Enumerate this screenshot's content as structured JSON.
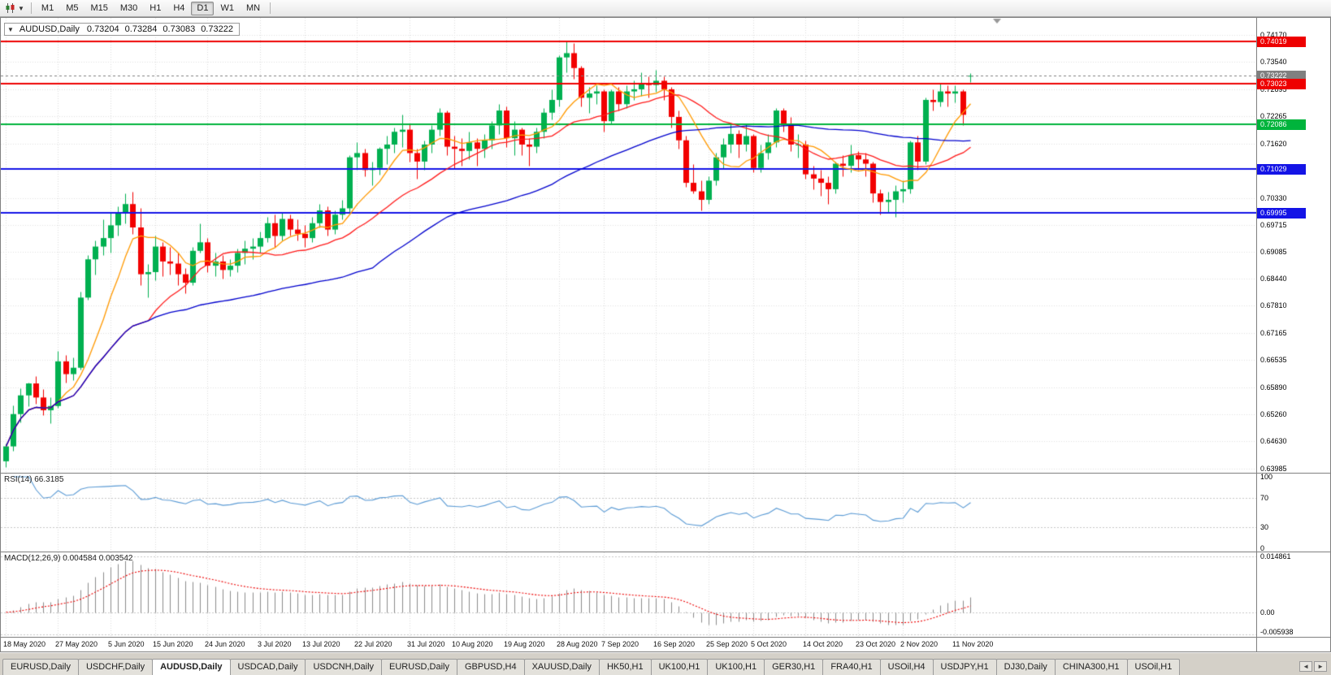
{
  "toolbar": {
    "dropdown_caret": "▼",
    "timeframes": [
      "M1",
      "M5",
      "M15",
      "M30",
      "H1",
      "H4",
      "D1",
      "W1",
      "MN"
    ],
    "active_timeframe": "D1"
  },
  "info_box": {
    "caret": "▼",
    "symbol": "AUDUSD,Daily",
    "open": "0.73204",
    "high": "0.73284",
    "low": "0.73083",
    "close": "0.73222"
  },
  "price_scale": {
    "ticks": [
      "0.74170",
      "0.73540",
      "0.72895",
      "0.72265",
      "0.71620",
      "0.70330",
      "0.69715",
      "0.69085",
      "0.68440",
      "0.67810",
      "0.67165",
      "0.66535",
      "0.65890",
      "0.65260",
      "0.64630",
      "0.63985"
    ]
  },
  "chart_data": {
    "type": "candlestick",
    "symbol": "AUDUSD",
    "timeframe": "Daily",
    "ohlc_display": {
      "open": 0.73204,
      "high": 0.73284,
      "low": 0.73083,
      "close": 0.73222
    },
    "y_range": [
      0.6388,
      0.7458
    ],
    "colors": {
      "up": "#00B050",
      "down": "#F20000"
    },
    "levels": [
      {
        "price": 0.74019,
        "label": "0.74019",
        "color": "#EE0000",
        "style": "solid",
        "width": 2
      },
      {
        "price": 0.73222,
        "label": "0.73222",
        "color": "#808080",
        "style": "dash",
        "width": 1
      },
      {
        "price": 0.73023,
        "label": "0.73023",
        "color": "#EE0000",
        "style": "solid",
        "width": 2
      },
      {
        "price": 0.72086,
        "label": "0.72086",
        "color": "#00B43C",
        "style": "solid",
        "width": 2
      },
      {
        "price": 0.71029,
        "label": "0.71029",
        "color": "#1414E6",
        "style": "solid",
        "width": 2
      },
      {
        "price": 0.69995,
        "label": "0.69995",
        "color": "#1414E6",
        "style": "solid",
        "width": 2
      }
    ],
    "moving_averages": [
      {
        "period": 8,
        "color": "#FF9900"
      },
      {
        "period": 20,
        "color": "#FF1A1A"
      },
      {
        "period": 50,
        "color": "#0000CD"
      }
    ],
    "indicators": [
      {
        "name": "RSI",
        "params": "14",
        "value": "66.3185",
        "label": "RSI(14) 66.3185",
        "scale": [
          100,
          70,
          30,
          0
        ],
        "dotted_levels": [
          70,
          30
        ],
        "color": "#5B9BD5",
        "range": [
          0,
          100
        ]
      },
      {
        "name": "MACD",
        "params": "12,26,9",
        "values": "0.004584 0.003542",
        "label": "MACD(12,26,9) 0.004584 0.003542",
        "scale_top": "0.014861",
        "scale_zero": "0.00",
        "scale_bottom": "-0.005938",
        "histogram_color": "#8C8C8C",
        "signal_color": "#EE0000"
      }
    ],
    "x_labels": [
      {
        "text": "18 May 2020",
        "i": 0
      },
      {
        "text": "27 May 2020",
        "i": 7
      },
      {
        "text": "5 Jun 2020",
        "i": 14
      },
      {
        "text": "15 Jun 2020",
        "i": 20
      },
      {
        "text": "24 Jun 2020",
        "i": 27
      },
      {
        "text": "3 Jul 2020",
        "i": 34
      },
      {
        "text": "13 Jul 2020",
        "i": 40
      },
      {
        "text": "22 Jul 2020",
        "i": 47
      },
      {
        "text": "31 Jul 2020",
        "i": 54
      },
      {
        "text": "10 Aug 2020",
        "i": 60
      },
      {
        "text": "19 Aug 2020",
        "i": 67
      },
      {
        "text": "28 Aug 2020",
        "i": 74
      },
      {
        "text": "7 Sep 2020",
        "i": 80
      },
      {
        "text": "16 Sep 2020",
        "i": 87
      },
      {
        "text": "25 Sep 2020",
        "i": 94
      },
      {
        "text": "5 Oct 2020",
        "i": 100
      },
      {
        "text": "14 Oct 2020",
        "i": 107
      },
      {
        "text": "23 Oct 2020",
        "i": 114
      },
      {
        "text": "2 Nov 2020",
        "i": 120
      },
      {
        "text": "11 Nov 2020",
        "i": 127
      }
    ],
    "candles": [
      [
        0.6415,
        0.6456,
        0.6402,
        0.645
      ],
      [
        0.645,
        0.6546,
        0.644,
        0.6526
      ],
      [
        0.6526,
        0.6586,
        0.6506,
        0.657
      ],
      [
        0.657,
        0.66,
        0.6545,
        0.6598
      ],
      [
        0.6598,
        0.6616,
        0.655,
        0.6565
      ],
      [
        0.6565,
        0.6585,
        0.6524,
        0.6535
      ],
      [
        0.6535,
        0.6566,
        0.6505,
        0.6545
      ],
      [
        0.6545,
        0.6675,
        0.654,
        0.665
      ],
      [
        0.665,
        0.6665,
        0.66,
        0.662
      ],
      [
        0.662,
        0.666,
        0.6605,
        0.6635
      ],
      [
        0.6635,
        0.6815,
        0.663,
        0.68
      ],
      [
        0.68,
        0.69,
        0.6795,
        0.689
      ],
      [
        0.689,
        0.6935,
        0.6855,
        0.692
      ],
      [
        0.692,
        0.6985,
        0.69,
        0.694
      ],
      [
        0.694,
        0.7,
        0.6905,
        0.697
      ],
      [
        0.697,
        0.7015,
        0.6945,
        0.7
      ],
      [
        0.7,
        0.7045,
        0.6975,
        0.702
      ],
      [
        0.702,
        0.705,
        0.695,
        0.6965
      ],
      [
        0.6965,
        0.701,
        0.683,
        0.6855
      ],
      [
        0.6855,
        0.688,
        0.68,
        0.686
      ],
      [
        0.686,
        0.6945,
        0.684,
        0.692
      ],
      [
        0.692,
        0.693,
        0.685,
        0.6885
      ],
      [
        0.6885,
        0.692,
        0.6855,
        0.688
      ],
      [
        0.688,
        0.6905,
        0.683,
        0.6855
      ],
      [
        0.6855,
        0.687,
        0.681,
        0.6835
      ],
      [
        0.6835,
        0.692,
        0.683,
        0.691
      ],
      [
        0.691,
        0.6975,
        0.6905,
        0.693
      ],
      [
        0.693,
        0.694,
        0.686,
        0.6875
      ],
      [
        0.6875,
        0.6905,
        0.685,
        0.6885
      ],
      [
        0.6885,
        0.69,
        0.6845,
        0.6865
      ],
      [
        0.6865,
        0.689,
        0.685,
        0.6875
      ],
      [
        0.6875,
        0.6915,
        0.686,
        0.6905
      ],
      [
        0.6905,
        0.6935,
        0.688,
        0.6915
      ],
      [
        0.6915,
        0.694,
        0.689,
        0.692
      ],
      [
        0.692,
        0.6955,
        0.6905,
        0.694
      ],
      [
        0.694,
        0.699,
        0.693,
        0.6975
      ],
      [
        0.6975,
        0.6995,
        0.692,
        0.6945
      ],
      [
        0.6945,
        0.7,
        0.6935,
        0.6985
      ],
      [
        0.6985,
        0.6995,
        0.6945,
        0.696
      ],
      [
        0.696,
        0.6985,
        0.6935,
        0.695
      ],
      [
        0.695,
        0.697,
        0.692,
        0.694
      ],
      [
        0.694,
        0.699,
        0.693,
        0.6975
      ],
      [
        0.6975,
        0.702,
        0.6965,
        0.7005
      ],
      [
        0.7005,
        0.7015,
        0.6945,
        0.696
      ],
      [
        0.696,
        0.7005,
        0.695,
        0.6995
      ],
      [
        0.6995,
        0.703,
        0.6985,
        0.701
      ],
      [
        0.701,
        0.7135,
        0.7,
        0.713
      ],
      [
        0.713,
        0.7165,
        0.71,
        0.714
      ],
      [
        0.714,
        0.715,
        0.7085,
        0.71
      ],
      [
        0.71,
        0.712,
        0.7065,
        0.7105
      ],
      [
        0.7105,
        0.7155,
        0.709,
        0.715
      ],
      [
        0.715,
        0.718,
        0.7115,
        0.716
      ],
      [
        0.716,
        0.72,
        0.714,
        0.719
      ],
      [
        0.719,
        0.723,
        0.7155,
        0.7195
      ],
      [
        0.7195,
        0.721,
        0.712,
        0.714
      ],
      [
        0.714,
        0.715,
        0.708,
        0.712
      ],
      [
        0.712,
        0.717,
        0.71,
        0.716
      ],
      [
        0.716,
        0.7205,
        0.714,
        0.7195
      ],
      [
        0.7195,
        0.7245,
        0.718,
        0.7235
      ],
      [
        0.7235,
        0.724,
        0.7135,
        0.7155
      ],
      [
        0.7155,
        0.718,
        0.7105,
        0.715
      ],
      [
        0.715,
        0.7175,
        0.711,
        0.7145
      ],
      [
        0.7145,
        0.719,
        0.7125,
        0.7165
      ],
      [
        0.7165,
        0.7175,
        0.711,
        0.715
      ],
      [
        0.715,
        0.7185,
        0.713,
        0.717
      ],
      [
        0.717,
        0.7215,
        0.715,
        0.7205
      ],
      [
        0.7205,
        0.7255,
        0.7185,
        0.724
      ],
      [
        0.724,
        0.725,
        0.7155,
        0.7175
      ],
      [
        0.7175,
        0.7215,
        0.7135,
        0.7195
      ],
      [
        0.7195,
        0.72,
        0.7135,
        0.716
      ],
      [
        0.716,
        0.7175,
        0.711,
        0.7155
      ],
      [
        0.7155,
        0.72,
        0.714,
        0.719
      ],
      [
        0.719,
        0.7245,
        0.7175,
        0.7235
      ],
      [
        0.7235,
        0.729,
        0.722,
        0.7265
      ],
      [
        0.7265,
        0.737,
        0.725,
        0.7365
      ],
      [
        0.7365,
        0.7402,
        0.733,
        0.7375
      ],
      [
        0.7375,
        0.7399,
        0.7315,
        0.734
      ],
      [
        0.734,
        0.7345,
        0.725,
        0.727
      ],
      [
        0.727,
        0.7295,
        0.7235,
        0.728
      ],
      [
        0.728,
        0.73,
        0.7255,
        0.7285
      ],
      [
        0.7285,
        0.729,
        0.719,
        0.7215
      ],
      [
        0.7215,
        0.729,
        0.721,
        0.7285
      ],
      [
        0.7285,
        0.7295,
        0.724,
        0.7255
      ],
      [
        0.7255,
        0.73,
        0.7245,
        0.7285
      ],
      [
        0.7285,
        0.731,
        0.7265,
        0.729
      ],
      [
        0.729,
        0.733,
        0.7275,
        0.7305
      ],
      [
        0.7305,
        0.732,
        0.727,
        0.73
      ],
      [
        0.73,
        0.7335,
        0.7285,
        0.731
      ],
      [
        0.731,
        0.732,
        0.7265,
        0.729
      ],
      [
        0.729,
        0.7295,
        0.72,
        0.7225
      ],
      [
        0.7225,
        0.724,
        0.715,
        0.717
      ],
      [
        0.717,
        0.718,
        0.706,
        0.707
      ],
      [
        0.707,
        0.7115,
        0.7045,
        0.705
      ],
      [
        0.705,
        0.7075,
        0.7005,
        0.703
      ],
      [
        0.703,
        0.7085,
        0.702,
        0.7075
      ],
      [
        0.7075,
        0.714,
        0.7065,
        0.713
      ],
      [
        0.713,
        0.7175,
        0.7105,
        0.716
      ],
      [
        0.716,
        0.721,
        0.714,
        0.7185
      ],
      [
        0.7185,
        0.7195,
        0.713,
        0.716
      ],
      [
        0.716,
        0.721,
        0.7145,
        0.718
      ],
      [
        0.718,
        0.7185,
        0.7095,
        0.7105
      ],
      [
        0.7105,
        0.716,
        0.7095,
        0.714
      ],
      [
        0.714,
        0.7185,
        0.7125,
        0.7165
      ],
      [
        0.7165,
        0.7245,
        0.7155,
        0.724
      ],
      [
        0.724,
        0.7245,
        0.719,
        0.7205
      ],
      [
        0.7205,
        0.7225,
        0.7145,
        0.716
      ],
      [
        0.716,
        0.7185,
        0.713,
        0.716
      ],
      [
        0.716,
        0.717,
        0.708,
        0.709
      ],
      [
        0.709,
        0.711,
        0.7055,
        0.708
      ],
      [
        0.708,
        0.71,
        0.704,
        0.707
      ],
      [
        0.707,
        0.7085,
        0.702,
        0.7055
      ],
      [
        0.7055,
        0.712,
        0.7045,
        0.7115
      ],
      [
        0.7115,
        0.7135,
        0.7085,
        0.711
      ],
      [
        0.711,
        0.716,
        0.7095,
        0.7135
      ],
      [
        0.7135,
        0.7145,
        0.71,
        0.7125
      ],
      [
        0.7125,
        0.714,
        0.7085,
        0.7115
      ],
      [
        0.7115,
        0.712,
        0.7025,
        0.7045
      ],
      [
        0.7045,
        0.7055,
        0.6995,
        0.7025
      ],
      [
        0.7025,
        0.705,
        0.7,
        0.703
      ],
      [
        0.703,
        0.7065,
        0.699,
        0.705
      ],
      [
        0.705,
        0.7075,
        0.7025,
        0.7055
      ],
      [
        0.7055,
        0.717,
        0.7045,
        0.7165
      ],
      [
        0.7165,
        0.718,
        0.71,
        0.712
      ],
      [
        0.712,
        0.727,
        0.7115,
        0.7265
      ],
      [
        0.7265,
        0.729,
        0.724,
        0.726
      ],
      [
        0.726,
        0.7305,
        0.725,
        0.7285
      ],
      [
        0.7285,
        0.73,
        0.725,
        0.728
      ],
      [
        0.728,
        0.73,
        0.726,
        0.7285
      ],
      [
        0.7285,
        0.729,
        0.7205,
        0.723
      ],
      [
        0.732,
        0.7328,
        0.7308,
        0.7322
      ]
    ]
  },
  "tabs": {
    "items": [
      "EURUSD,Daily",
      "USDCHF,Daily",
      "AUDUSD,Daily",
      "USDCAD,Daily",
      "USDCNH,Daily",
      "EURUSD,Daily",
      "GBPUSD,H4",
      "XAUUSD,Daily",
      "HK50,H1",
      "UK100,H1",
      "UK100,H1",
      "GER30,H1",
      "FRA40,H1",
      "USOil,H4",
      "USDJPY,H1",
      "DJ30,Daily",
      "CHINA300,H1",
      "USOil,H1"
    ],
    "active_index": 2,
    "scroll_left": "◄",
    "scroll_right": "►"
  }
}
